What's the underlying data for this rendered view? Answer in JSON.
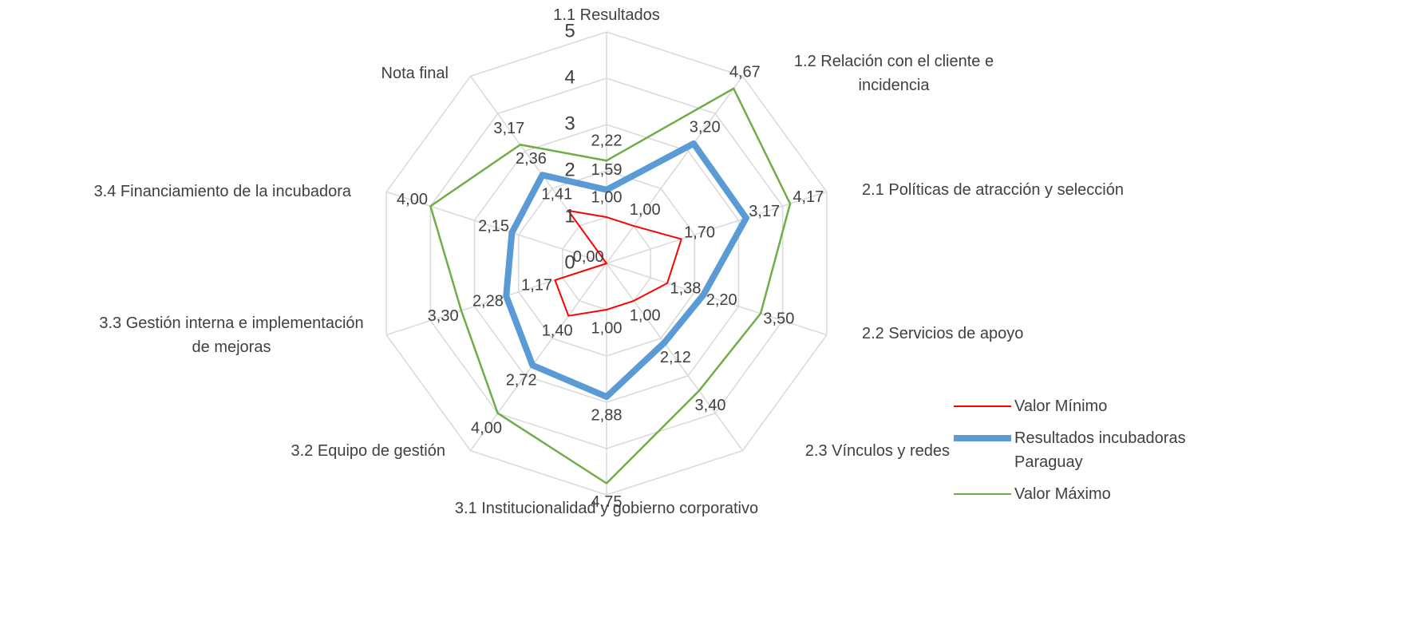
{
  "chart_data": {
    "type": "radar",
    "categories": [
      "1.1 Resultados",
      "1.2 Relación con el cliente e incidencia",
      "2.1 Políticas de atracción y selección",
      "2.2 Servicios de apoyo",
      "2.3 Vínculos y redes",
      "3.1 Institucionalidad y gobierno corporativo",
      "3.2 Equipo de gestión",
      "3.3 Gestión interna e implementación de mejoras",
      "3.4 Financiamiento de la incubadora",
      "Nota final"
    ],
    "ylim": [
      0,
      5
    ],
    "yticks": [
      0,
      1,
      2,
      3,
      4,
      5
    ],
    "grid": true,
    "legend": "bottom-right",
    "series": [
      {
        "name": "Valor Mínimo",
        "color": "#ff0000",
        "width": 2,
        "values": [
          1.0,
          1.0,
          1.7,
          1.38,
          1.0,
          1.0,
          1.4,
          1.17,
          0.0,
          1.41
        ],
        "value_labels": [
          "1,00",
          "1,00",
          "1,70",
          "1,38",
          "1,00",
          "1,00",
          "1,40",
          "1,17",
          "0,00",
          "1,41"
        ]
      },
      {
        "name": "Resultados incubadoras Paraguay",
        "color": "#5b9bd5",
        "width": 8,
        "values": [
          1.59,
          3.2,
          3.17,
          2.2,
          2.12,
          2.88,
          2.72,
          2.28,
          2.15,
          2.36
        ],
        "value_labels": [
          "1,59",
          "3,20",
          "3,17",
          "2,20",
          "2,12",
          "2,88",
          "2,72",
          "2,28",
          "2,15",
          "2,36"
        ]
      },
      {
        "name": "Valor Máximo",
        "color": "#70ad47",
        "width": 2.5,
        "values": [
          2.22,
          4.67,
          4.17,
          3.5,
          3.4,
          4.75,
          4.0,
          3.3,
          4.0,
          3.17
        ],
        "value_labels": [
          "2,22",
          "4,67",
          "4,17",
          "3,50",
          "3,40",
          "4,75",
          "4,00",
          "3,30",
          "4,00",
          "3,17"
        ]
      }
    ]
  }
}
